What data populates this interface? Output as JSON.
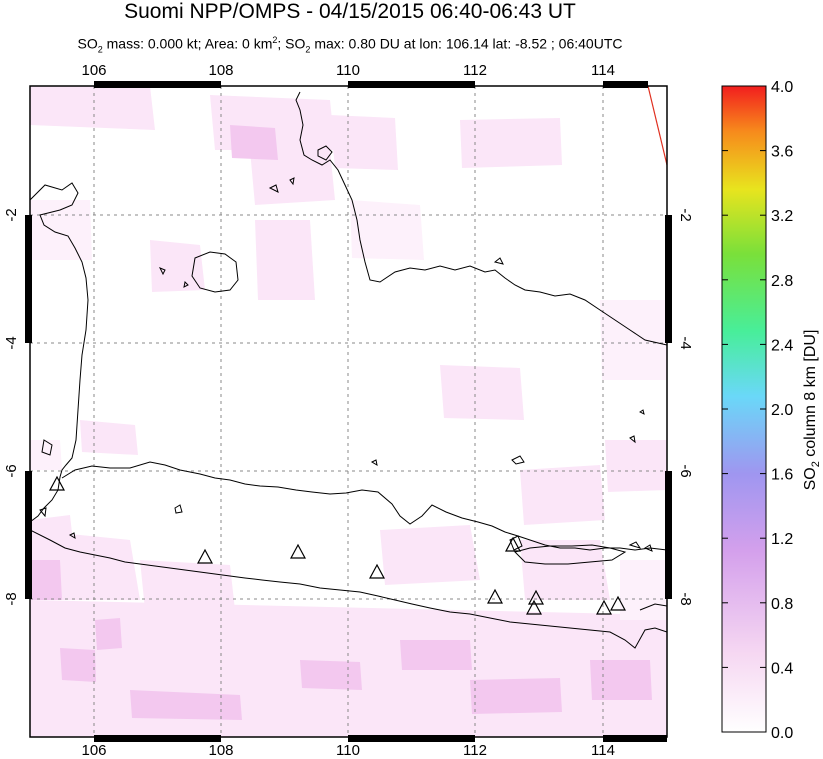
{
  "title": "Suomi NPP/OMPS - 04/15/2015 06:40-06:43 UT",
  "subtitle": {
    "p1": "SO",
    "p1_sub": "2",
    "p2": " mass: 0.000 kt; Area: 0 km",
    "p2_sup": "2",
    "p3": "; SO",
    "p3_sub": "2",
    "p4": " max: 0.80 DU at lon: 106.14 lat: -8.52 ; 06:40UTC"
  },
  "map": {
    "lon_range": [
      105,
      115
    ],
    "lat_range": [
      -10,
      0
    ],
    "lon_ticks": [
      "106",
      "108",
      "110",
      "112",
      "114"
    ],
    "lat_ticks": [
      "-2",
      "-4",
      "-6",
      "-8"
    ],
    "volcano_markers": 10,
    "colors": {
      "coast": "#000000",
      "grid": "#888888",
      "track": "#e03020"
    }
  },
  "colorbar": {
    "label": "SO2 column 8 km [DU]",
    "label_parts": {
      "a": "SO",
      "sub": "2",
      "b": " column 8 km [DU]"
    },
    "ticks": [
      "0.0",
      "0.4",
      "0.8",
      "1.2",
      "1.6",
      "2.0",
      "2.4",
      "2.8",
      "3.2",
      "3.6",
      "4.0"
    ],
    "range": [
      0,
      4
    ]
  }
}
